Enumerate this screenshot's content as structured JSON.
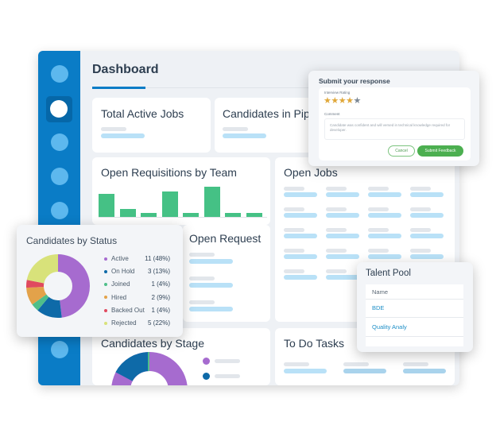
{
  "dashboard": {
    "title": "Dashboard",
    "cards": {
      "total_active_jobs": "Total Active Jobs",
      "candidates_in_pipeline": "Candidates in Pip",
      "open_requisitions": "Open Requisitions by Team",
      "open_jobs": "Open Jobs",
      "open_request": "Open Request",
      "candidates_by_stage": "Candidates by Stage",
      "todo_tasks": "To Do Tasks"
    },
    "requisition_bars": [
      29,
      10,
      5,
      32,
      5,
      38,
      5,
      5
    ],
    "accent": "#0a7cc6",
    "bar_color": "#45c185"
  },
  "response_popup": {
    "title": "Submit your response",
    "rating_label": "Interview Rating",
    "rating": 4,
    "rating_max": 5,
    "comment_label": "Comment",
    "comment": "Candidate was confident and will versed in technical knowledge required for developer.",
    "cancel": "Cancel",
    "submit": "Submit Feedback",
    "submit_color": "#4caf50"
  },
  "status_popup": {
    "title": "Candidates by Status",
    "items": [
      {
        "label": "Active",
        "value": "11 (48%)",
        "pct": 48,
        "color": "#a66bcf"
      },
      {
        "label": "On Hold",
        "value": "3 (13%)",
        "pct": 13,
        "color": "#0e6aa8"
      },
      {
        "label": "Joined",
        "value": "1 (4%)",
        "pct": 4,
        "color": "#4fbf8a"
      },
      {
        "label": "Hired",
        "value": "2 (9%)",
        "pct": 9,
        "color": "#e3a24a"
      },
      {
        "label": "Backed Out",
        "value": "1 (4%)",
        "pct": 4,
        "color": "#e04a5f"
      },
      {
        "label": "Rejected",
        "value": "5 (22%)",
        "pct": 22,
        "color": "#d8e27a"
      }
    ]
  },
  "talent_pool": {
    "title": "Talent Pool",
    "header": "Name",
    "rows": [
      "BDE",
      "Quality Analy"
    ]
  }
}
